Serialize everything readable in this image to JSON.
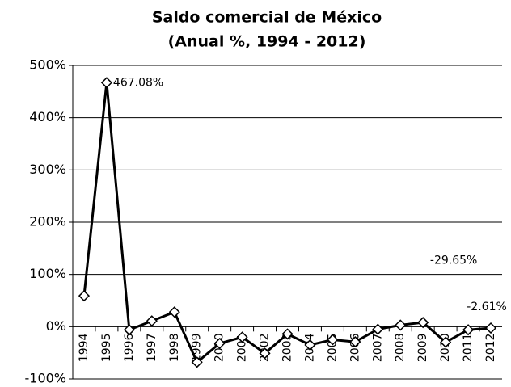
{
  "chart_data": {
    "type": "line",
    "title": [
      "Saldo comercial de México",
      "(Anual %, 1994 - 2012)"
    ],
    "categories": [
      "1994",
      "1995",
      "1996",
      "1997",
      "1998",
      "1999",
      "2000",
      "2001",
      "2002",
      "2003",
      "2004",
      "2005",
      "2006",
      "2007",
      "2008",
      "2009",
      "2010",
      "2011",
      "2012"
    ],
    "series": [
      {
        "name": "Saldo comercial",
        "color": "#000000",
        "values": [
          59,
          467.08,
          -6,
          11,
          28,
          -68,
          -32,
          -20,
          -51,
          -14,
          -35,
          -25,
          -29,
          -5,
          3,
          8,
          -29.65,
          -6,
          -2.61
        ],
        "value_labels": [
          null,
          "467.08%",
          null,
          null,
          null,
          null,
          null,
          null,
          null,
          null,
          null,
          null,
          null,
          null,
          null,
          null,
          "-29.65%",
          null,
          "-2.61%"
        ]
      }
    ],
    "ylim": [
      -100,
      500
    ],
    "yticks": [
      {
        "value": -100,
        "label": "-100%"
      },
      {
        "value": 0,
        "label": "0%"
      },
      {
        "value": 100,
        "label": "100%"
      },
      {
        "value": 200,
        "label": "200%"
      },
      {
        "value": 300,
        "label": "300%"
      },
      {
        "value": 400,
        "label": "400%"
      },
      {
        "value": 500,
        "label": "500%"
      }
    ],
    "grid": true
  }
}
